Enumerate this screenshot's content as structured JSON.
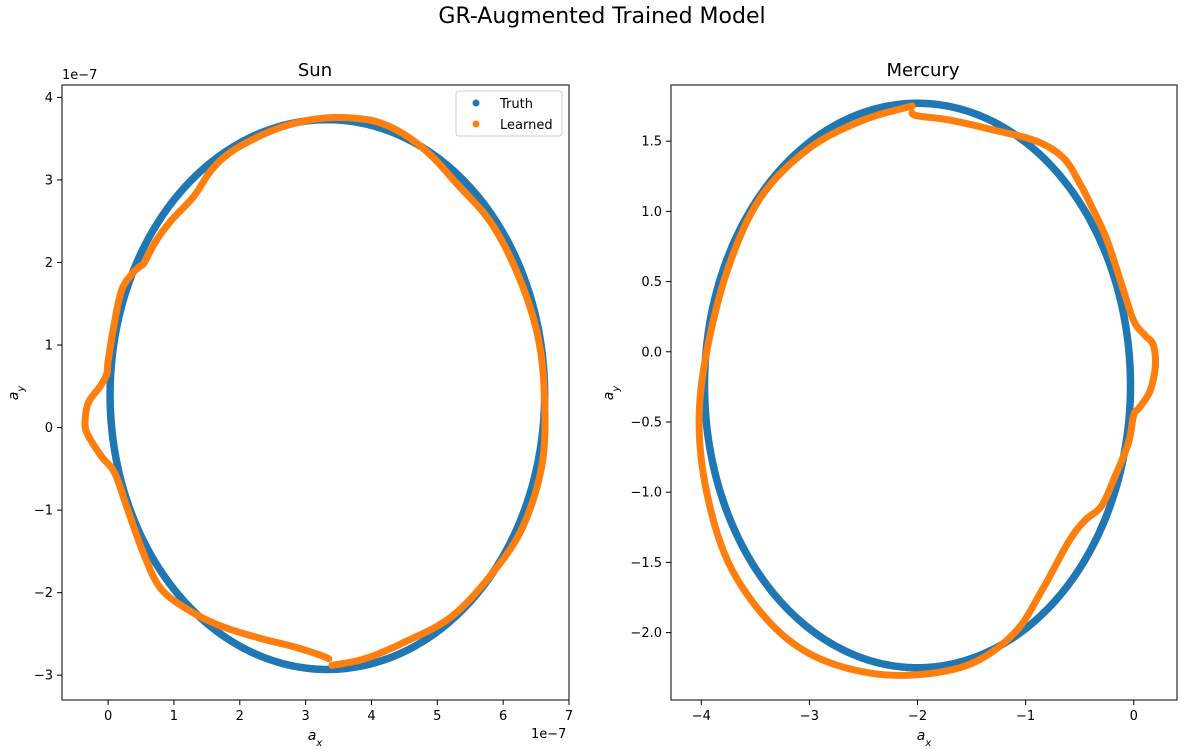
{
  "figure": {
    "suptitle": "GR-Augmented Trained Model"
  },
  "colors": {
    "truth": "#1f77b4",
    "learned": "#ff7f0e",
    "axes": "#000000",
    "background": "#ffffff"
  },
  "chart_data": [
    {
      "type": "scatter",
      "title": "Sun",
      "xlabel": "a_x",
      "ylabel": "a_y",
      "x_exponent_label": "1e−7",
      "y_exponent_label": "1e−7",
      "xlim": [
        -0.7,
        7.0
      ],
      "ylim": [
        -3.3,
        4.15
      ],
      "xticks": [
        0,
        1,
        2,
        3,
        4,
        5,
        6,
        7
      ],
      "xtick_labels": [
        "0",
        "1",
        "2",
        "3",
        "4",
        "5",
        "6",
        "7"
      ],
      "yticks": [
        -3,
        -2,
        -1,
        0,
        1,
        2,
        3,
        4
      ],
      "ytick_labels": [
        "−3",
        "−2",
        "−1",
        "0",
        "1",
        "2",
        "3",
        "4"
      ],
      "grid": false,
      "legend": {
        "placement": "top-right",
        "entries": [
          "Truth",
          "Learned"
        ]
      },
      "series": [
        {
          "name": "Truth",
          "color": "#1f77b4",
          "ellipse": {
            "cx": 3.33,
            "cy": 0.4,
            "rx": 3.3,
            "ry": 3.33
          }
        },
        {
          "name": "Learned",
          "color": "#ff7f0e",
          "x": [
            3.4,
            3.9,
            4.5,
            5.2,
            5.8,
            6.3,
            6.6,
            6.62,
            6.5,
            6.2,
            5.8,
            5.3,
            4.9,
            4.5,
            4.1,
            3.7,
            3.3,
            2.9,
            2.5,
            2.1,
            1.8,
            1.55,
            1.3,
            0.95,
            0.72,
            0.55,
            0.48,
            0.35,
            0.2,
            0.08,
            0.0,
            -0.02,
            -0.12,
            -0.3,
            -0.35,
            -0.3,
            -0.1,
            0.1,
            0.3,
            0.55,
            0.8,
            1.2,
            1.7,
            2.3,
            2.8,
            3.2,
            3.35
          ],
          "y": [
            -2.88,
            -2.8,
            -2.6,
            -2.3,
            -1.8,
            -1.2,
            -0.4,
            0.5,
            1.2,
            1.9,
            2.5,
            2.95,
            3.3,
            3.55,
            3.7,
            3.75,
            3.75,
            3.7,
            3.6,
            3.45,
            3.3,
            3.1,
            2.8,
            2.5,
            2.25,
            2.0,
            1.95,
            1.85,
            1.65,
            1.2,
            0.8,
            0.65,
            0.5,
            0.3,
            0.05,
            -0.1,
            -0.35,
            -0.55,
            -1.0,
            -1.55,
            -1.95,
            -2.2,
            -2.4,
            -2.55,
            -2.65,
            -2.75,
            -2.8
          ]
        }
      ]
    },
    {
      "type": "scatter",
      "title": "Mercury",
      "xlabel": "a_x",
      "ylabel": "a_y",
      "xlim": [
        -4.28,
        0.4
      ],
      "ylim": [
        -2.48,
        1.9
      ],
      "xticks": [
        -4,
        -3,
        -2,
        -1,
        0
      ],
      "xtick_labels": [
        "−4",
        "−3",
        "−2",
        "−1",
        "0"
      ],
      "yticks": [
        -2.0,
        -1.5,
        -1.0,
        -0.5,
        0.0,
        0.5,
        1.0,
        1.5
      ],
      "ytick_labels": [
        "−2.0",
        "−1.5",
        "−1.0",
        "−0.5",
        "0.0",
        "0.5",
        "1.0",
        "1.5"
      ],
      "grid": false,
      "series": [
        {
          "name": "Truth",
          "color": "#1f77b4",
          "ellipse": {
            "cx": -2.0,
            "cy": -0.24,
            "rx": 1.97,
            "ry": 2.01
          }
        },
        {
          "name": "Learned",
          "color": "#ff7f0e",
          "x": [
            -2.05,
            -2.5,
            -3.0,
            -3.45,
            -3.75,
            -3.95,
            -4.02,
            -3.95,
            -3.75,
            -3.4,
            -3.0,
            -2.5,
            -2.0,
            -1.5,
            -1.1,
            -0.85,
            -0.6,
            -0.45,
            -0.3,
            -0.18,
            -0.05,
            0.0,
            0.05,
            0.15,
            0.2,
            0.18,
            0.1,
            0.0,
            -0.1,
            -0.25,
            -0.4,
            -0.5,
            -0.65,
            -0.9,
            -1.3,
            -1.7,
            -2.0,
            -2.05
          ],
          "y": [
            1.75,
            1.65,
            1.45,
            1.1,
            0.6,
            0.0,
            -0.5,
            -1.0,
            -1.5,
            -1.9,
            -2.15,
            -2.28,
            -2.3,
            -2.22,
            -2.0,
            -1.7,
            -1.35,
            -1.2,
            -1.1,
            -0.9,
            -0.65,
            -0.45,
            -0.4,
            -0.28,
            -0.1,
            0.05,
            0.12,
            0.22,
            0.45,
            0.8,
            1.05,
            1.2,
            1.38,
            1.5,
            1.58,
            1.65,
            1.68,
            1.7
          ]
        }
      ]
    }
  ]
}
